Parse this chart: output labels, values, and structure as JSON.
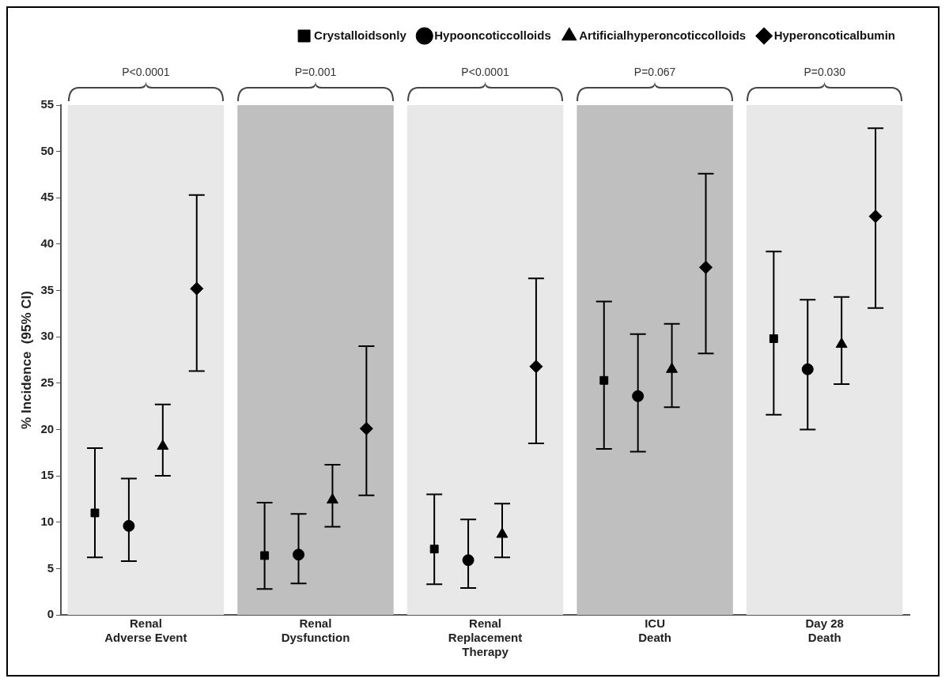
{
  "chart_data": {
    "type": "scatter",
    "ylabel": "% Incidence  (95% CI)",
    "categories": [
      "Renal\nAdverse Event",
      "Renal\nDysfunction",
      "Renal\nReplacement\nTherapy",
      "ICU\nDeath",
      "Day 28\nDeath"
    ],
    "series": [
      {
        "name": "Crystalloidsonly",
        "color": "#000000",
        "marker": "square",
        "values": [
          11,
          6.4,
          7.1,
          25.3,
          29.8
        ],
        "errors": [
          [
            6.2,
            18
          ],
          [
            2.8,
            12.1
          ],
          [
            3.3,
            13
          ],
          [
            17.9,
            33.8
          ],
          [
            21.6,
            39.2
          ]
        ]
      },
      {
        "name": "Hypooncoticcolloids",
        "color": "#000000",
        "marker": "circle",
        "values": [
          9.6,
          6.5,
          5.9,
          23.6,
          26.5
        ],
        "errors": [
          [
            5.8,
            14.7
          ],
          [
            3.4,
            10.9
          ],
          [
            2.9,
            10.3
          ],
          [
            17.6,
            30.3
          ],
          [
            20,
            34
          ]
        ]
      },
      {
        "name": "Artificialhyperoncoticcolloids",
        "color": "#000000",
        "marker": "triangle",
        "values": [
          18.2,
          12.4,
          8.7,
          26.5,
          29.2
        ],
        "errors": [
          [
            15,
            22.7
          ],
          [
            9.5,
            16.2
          ],
          [
            6.2,
            12
          ],
          [
            22.4,
            31.4
          ],
          [
            24.9,
            34.3
          ]
        ]
      },
      {
        "name": "Hyperoncoticalbumin",
        "color": "#000000",
        "marker": "diamond",
        "values": [
          35.2,
          20.1,
          26.8,
          37.5,
          43
        ],
        "errors": [
          [
            26.3,
            45.3
          ],
          [
            12.9,
            29
          ],
          [
            18.5,
            36.3
          ],
          [
            28.2,
            47.6
          ],
          [
            33.1,
            52.5
          ]
        ]
      }
    ],
    "bands": [
      {
        "axis": "x",
        "from": "Renal\nAdverse Event",
        "to": "Renal\nAdverse Event",
        "color": "#e8e8e8"
      },
      {
        "axis": "x",
        "from": "Renal\nDysfunction",
        "to": "Renal\nDysfunction",
        "color": "#bfbfbf"
      },
      {
        "axis": "x",
        "from": "Renal\nReplacement\nTherapy",
        "to": "Renal\nReplacement\nTherapy",
        "color": "#e8e8e8"
      },
      {
        "axis": "x",
        "from": "ICU\nDeath",
        "to": "ICU\nDeath",
        "color": "#bfbfbf"
      },
      {
        "axis": "x",
        "from": "Day 28\nDeath",
        "to": "Day 28\nDeath",
        "color": "#e8e8e8"
      }
    ],
    "annotations": [
      "P<0.0001",
      "P=0.001",
      "P<0.0001",
      "P=0.067",
      "P=0.030"
    ],
    "ylim": [
      0,
      55
    ],
    "yticks": [
      0,
      5,
      10,
      15,
      20,
      25,
      30,
      35,
      40,
      45,
      50,
      55
    ],
    "grid": false,
    "legend": "top right"
  }
}
